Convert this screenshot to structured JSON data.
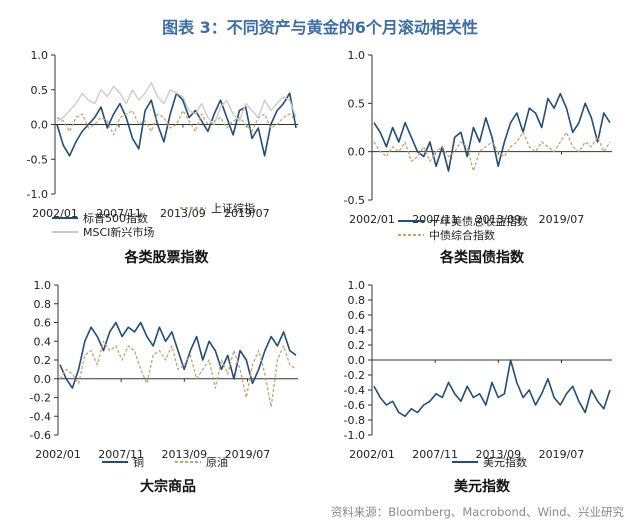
{
  "figure": {
    "title": "图表 3：不同资产与黄金的6个月滚动相关性",
    "source": "资料来源：Bloomberg、Macrobond、Wind、兴业研究"
  },
  "colors": {
    "navy": "#1f4e79",
    "gold": "#c8a46a",
    "lightgray": "#c9c9c9",
    "title": "#3d6da6"
  },
  "chart_data": [
    {
      "type": "line",
      "title": "各类股票指数",
      "x_ticks": [
        "2002/01",
        "2007/11",
        "2013/09",
        "2019/07"
      ],
      "x_range": [
        "2002/01",
        "2022/06"
      ],
      "ylim": [
        -1.0,
        1.0
      ],
      "y_ticks": [
        "1.0",
        "0.5",
        "0.0",
        "-0.5",
        "-1.0"
      ],
      "legend_position": "bottom",
      "series": [
        {
          "name": "标普500指数",
          "color": "navy",
          "dash": false,
          "values": [
            0.0,
            -0.3,
            -0.45,
            -0.25,
            -0.1,
            0.0,
            0.1,
            0.25,
            -0.05,
            0.15,
            0.3,
            0.1,
            -0.2,
            -0.35,
            0.2,
            0.35,
            0.0,
            -0.25,
            0.15,
            0.45,
            0.35,
            0.1,
            0.2,
            0.05,
            -0.1,
            0.15,
            0.35,
            0.1,
            -0.15,
            0.2,
            0.25,
            -0.2,
            -0.05,
            -0.45,
            0.0,
            0.2,
            0.3,
            0.45,
            -0.05
          ]
        },
        {
          "name": "上证综指",
          "color": "gold",
          "dash": true,
          "values": [
            0.1,
            0.05,
            -0.1,
            0.1,
            0.15,
            -0.05,
            0.0,
            0.1,
            0.05,
            -0.15,
            0.1,
            0.15,
            0.2,
            0.0,
            0.05,
            -0.1,
            0.15,
            0.1,
            -0.05,
            0.0,
            0.2,
            0.05,
            -0.1,
            0.15,
            0.0,
            0.05,
            0.1,
            -0.05,
            0.05,
            0.1,
            0.0,
            -0.1,
            0.1,
            0.15,
            -0.05,
            0.0,
            0.1,
            0.15,
            0.05
          ]
        },
        {
          "name": "MSCI新兴市场",
          "color": "lightgray",
          "dash": false,
          "values": [
            0.05,
            0.1,
            0.2,
            0.3,
            0.45,
            0.35,
            0.3,
            0.5,
            0.4,
            0.55,
            0.45,
            0.3,
            0.5,
            0.35,
            0.45,
            0.6,
            0.4,
            0.3,
            0.5,
            0.45,
            0.4,
            0.2,
            0.15,
            0.3,
            0.1,
            0.0,
            0.25,
            0.35,
            0.15,
            0.05,
            0.3,
            0.2,
            0.1,
            0.35,
            0.2,
            0.3,
            0.4,
            0.35,
            0.1
          ]
        }
      ]
    },
    {
      "type": "line",
      "title": "各类国债指数",
      "x_ticks": [
        "2002/01",
        "2007/11",
        "2013/09",
        "2019/07"
      ],
      "x_range": [
        "2002/01",
        "2022/06"
      ],
      "ylim": [
        -0.5,
        1.0
      ],
      "y_ticks": [
        "1.0",
        "0.5",
        "0.0",
        "-0.5"
      ],
      "legend_position": "bottom",
      "series": [
        {
          "name": "十年美债总收益指数",
          "color": "navy",
          "dash": false,
          "values": [
            0.3,
            0.2,
            0.05,
            0.25,
            0.1,
            0.3,
            0.15,
            0.0,
            -0.05,
            0.1,
            -0.15,
            0.05,
            -0.2,
            0.15,
            0.2,
            -0.05,
            0.25,
            0.1,
            0.35,
            0.15,
            -0.15,
            0.1,
            0.3,
            0.4,
            0.2,
            0.45,
            0.4,
            0.25,
            0.55,
            0.45,
            0.6,
            0.45,
            0.2,
            0.3,
            0.5,
            0.35,
            0.1,
            0.4,
            0.3
          ]
        },
        {
          "name": "中债综合指数",
          "color": "gold",
          "dash": true,
          "values": [
            0.1,
            0.0,
            -0.05,
            0.05,
            0.0,
            0.1,
            -0.1,
            -0.05,
            0.05,
            -0.1,
            0.0,
            0.05,
            -0.05,
            0.0,
            0.1,
            0.05,
            -0.2,
            0.0,
            0.05,
            0.1,
            0.0,
            -0.05,
            0.05,
            0.1,
            0.2,
            0.05,
            0.0,
            0.1,
            0.05,
            0.0,
            0.1,
            0.2,
            0.05,
            0.0,
            0.1,
            0.05,
            0.15,
            0.0,
            0.1
          ]
        }
      ]
    },
    {
      "type": "line",
      "title": "大宗商品",
      "x_ticks": [
        "2002/01",
        "2007/11",
        "2013/09",
        "2019/07"
      ],
      "x_range": [
        "2002/01",
        "2022/06"
      ],
      "ylim": [
        -0.6,
        1.0
      ],
      "y_ticks": [
        "1.0",
        "0.8",
        "0.6",
        "0.4",
        "0.2",
        "0.0",
        "-0.2",
        "-0.4",
        "-0.6"
      ],
      "legend_position": "bottom",
      "series": [
        {
          "name": "铜",
          "color": "navy",
          "dash": false,
          "values": [
            0.15,
            0.0,
            -0.1,
            0.1,
            0.4,
            0.55,
            0.45,
            0.3,
            0.5,
            0.6,
            0.45,
            0.55,
            0.5,
            0.6,
            0.45,
            0.35,
            0.55,
            0.4,
            0.5,
            0.3,
            0.1,
            0.3,
            0.45,
            0.2,
            0.4,
            0.3,
            0.1,
            0.25,
            0.0,
            0.3,
            0.2,
            -0.05,
            0.1,
            0.3,
            0.45,
            0.35,
            0.5,
            0.3,
            0.25
          ]
        },
        {
          "name": "原油",
          "color": "gold",
          "dash": true,
          "values": [
            0.0,
            0.1,
            0.05,
            -0.05,
            0.25,
            0.3,
            0.15,
            0.4,
            0.3,
            0.35,
            0.2,
            0.35,
            0.3,
            0.1,
            -0.05,
            0.25,
            0.3,
            0.2,
            0.35,
            0.1,
            0.15,
            0.25,
            0.0,
            0.1,
            0.2,
            -0.1,
            0.2,
            0.05,
            0.3,
            0.1,
            -0.2,
            0.15,
            0.3,
            0.05,
            -0.3,
            0.2,
            0.35,
            0.15,
            0.1
          ]
        }
      ]
    },
    {
      "type": "line",
      "title": "美元指数",
      "x_ticks": [
        "2002/01",
        "2007/11",
        "2013/09",
        "2019/07"
      ],
      "x_range": [
        "2002/01",
        "2022/06"
      ],
      "ylim": [
        -1.0,
        1.0
      ],
      "y_ticks": [
        "1.0",
        "0.8",
        "0.6",
        "0.4",
        "0.2",
        "0.0",
        "-0.2",
        "-0.4",
        "-0.6",
        "-0.8",
        "-1.0"
      ],
      "legend_position": "bottom",
      "series": [
        {
          "name": "美元指数",
          "color": "navy",
          "dash": false,
          "values": [
            -0.35,
            -0.5,
            -0.6,
            -0.55,
            -0.7,
            -0.75,
            -0.65,
            -0.7,
            -0.6,
            -0.55,
            -0.45,
            -0.5,
            -0.3,
            -0.45,
            -0.55,
            -0.35,
            -0.5,
            -0.45,
            -0.6,
            -0.3,
            -0.5,
            -0.45,
            0.0,
            -0.3,
            -0.5,
            -0.4,
            -0.6,
            -0.45,
            -0.25,
            -0.5,
            -0.6,
            -0.45,
            -0.35,
            -0.55,
            -0.7,
            -0.4,
            -0.55,
            -0.65,
            -0.4
          ]
        }
      ]
    }
  ]
}
